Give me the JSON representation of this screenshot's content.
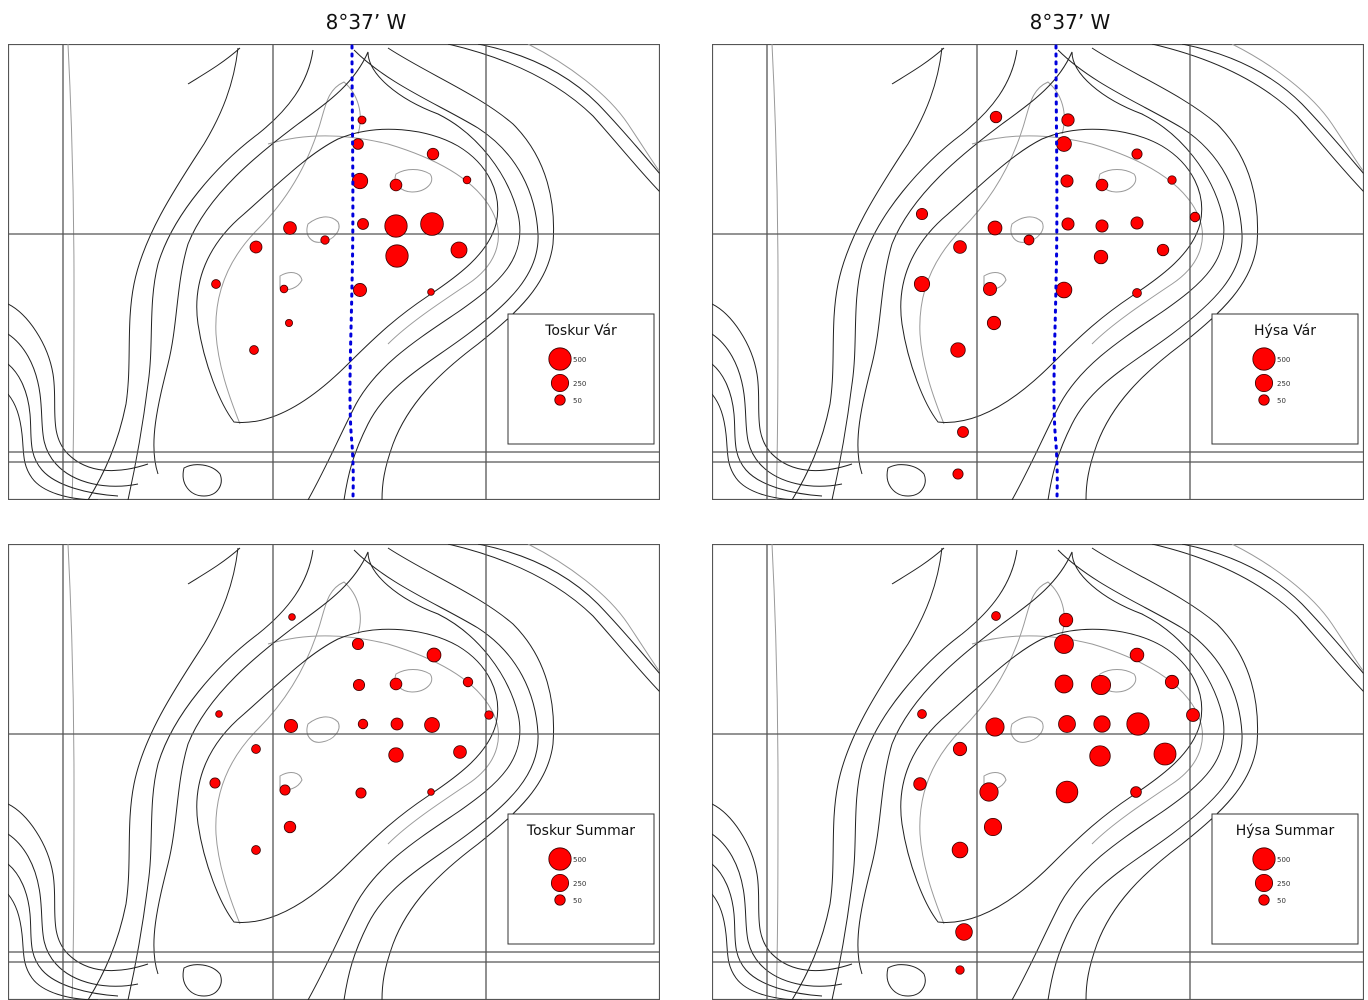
{
  "longitude_label": "8°37’ W",
  "panels": [
    {
      "id": "tl",
      "legend_title": "Toskur Vár",
      "show_meridian": true,
      "stations": [
        {
          "x": 354,
          "y": 76,
          "v": 15
        },
        {
          "x": 350,
          "y": 100,
          "v": 55
        },
        {
          "x": 425,
          "y": 110,
          "v": 70
        },
        {
          "x": 459,
          "y": 136,
          "v": 12
        },
        {
          "x": 352,
          "y": 137,
          "v": 180
        },
        {
          "x": 388,
          "y": 141,
          "v": 75
        },
        {
          "x": 388,
          "y": 182,
          "v": 500
        },
        {
          "x": 424,
          "y": 180,
          "v": 520
        },
        {
          "x": 355,
          "y": 180,
          "v": 60
        },
        {
          "x": 282,
          "y": 184,
          "v": 100
        },
        {
          "x": 317,
          "y": 196,
          "v": 20
        },
        {
          "x": 248,
          "y": 203,
          "v": 80
        },
        {
          "x": 451,
          "y": 206,
          "v": 200
        },
        {
          "x": 389,
          "y": 212,
          "v": 500
        },
        {
          "x": 208,
          "y": 240,
          "v": 25
        },
        {
          "x": 276,
          "y": 245,
          "v": 12
        },
        {
          "x": 352,
          "y": 246,
          "v": 110
        },
        {
          "x": 423,
          "y": 248,
          "v": 5
        },
        {
          "x": 281,
          "y": 279,
          "v": 8
        },
        {
          "x": 246,
          "y": 306,
          "v": 25
        }
      ]
    },
    {
      "id": "tr",
      "legend_title": "Hýsa Vár",
      "show_meridian": true,
      "stations": [
        {
          "x": 284,
          "y": 73,
          "v": 70
        },
        {
          "x": 356,
          "y": 76,
          "v": 90
        },
        {
          "x": 352,
          "y": 100,
          "v": 160
        },
        {
          "x": 425,
          "y": 110,
          "v": 45
        },
        {
          "x": 460,
          "y": 136,
          "v": 20
        },
        {
          "x": 355,
          "y": 137,
          "v": 85
        },
        {
          "x": 390,
          "y": 141,
          "v": 75
        },
        {
          "x": 210,
          "y": 170,
          "v": 65
        },
        {
          "x": 283,
          "y": 184,
          "v": 130
        },
        {
          "x": 317,
          "y": 196,
          "v": 40
        },
        {
          "x": 356,
          "y": 180,
          "v": 85
        },
        {
          "x": 390,
          "y": 182,
          "v": 85
        },
        {
          "x": 425,
          "y": 179,
          "v": 85
        },
        {
          "x": 483,
          "y": 173,
          "v": 35
        },
        {
          "x": 248,
          "y": 203,
          "v": 100
        },
        {
          "x": 451,
          "y": 206,
          "v": 70
        },
        {
          "x": 389,
          "y": 213,
          "v": 120
        },
        {
          "x": 210,
          "y": 240,
          "v": 175
        },
        {
          "x": 278,
          "y": 245,
          "v": 110
        },
        {
          "x": 352,
          "y": 246,
          "v": 190
        },
        {
          "x": 425,
          "y": 249,
          "v": 25
        },
        {
          "x": 282,
          "y": 279,
          "v": 115
        },
        {
          "x": 246,
          "y": 306,
          "v": 150
        },
        {
          "x": 251,
          "y": 388,
          "v": 60
        },
        {
          "x": 246,
          "y": 430,
          "v": 45
        }
      ]
    },
    {
      "id": "bl",
      "legend_title": "Toskur Summar",
      "show_meridian": false,
      "stations": [
        {
          "x": 284,
          "y": 73,
          "v": 5
        },
        {
          "x": 350,
          "y": 100,
          "v": 65
        },
        {
          "x": 426,
          "y": 111,
          "v": 130
        },
        {
          "x": 460,
          "y": 138,
          "v": 35
        },
        {
          "x": 351,
          "y": 141,
          "v": 65
        },
        {
          "x": 388,
          "y": 140,
          "v": 75
        },
        {
          "x": 211,
          "y": 170,
          "v": 5
        },
        {
          "x": 283,
          "y": 182,
          "v": 110
        },
        {
          "x": 355,
          "y": 180,
          "v": 35
        },
        {
          "x": 389,
          "y": 180,
          "v": 80
        },
        {
          "x": 424,
          "y": 181,
          "v": 160
        },
        {
          "x": 481,
          "y": 171,
          "v": 20
        },
        {
          "x": 248,
          "y": 205,
          "v": 25
        },
        {
          "x": 452,
          "y": 208,
          "v": 100
        },
        {
          "x": 388,
          "y": 211,
          "v": 150
        },
        {
          "x": 207,
          "y": 239,
          "v": 45
        },
        {
          "x": 277,
          "y": 246,
          "v": 45
        },
        {
          "x": 353,
          "y": 249,
          "v": 45
        },
        {
          "x": 423,
          "y": 248,
          "v": 5
        },
        {
          "x": 282,
          "y": 283,
          "v": 70
        },
        {
          "x": 248,
          "y": 306,
          "v": 25
        }
      ]
    },
    {
      "id": "br",
      "legend_title": "Hýsa Summar",
      "show_meridian": false,
      "stations": [
        {
          "x": 284,
          "y": 72,
          "v": 25
        },
        {
          "x": 354,
          "y": 76,
          "v": 120
        },
        {
          "x": 352,
          "y": 100,
          "v": 320
        },
        {
          "x": 425,
          "y": 111,
          "v": 125
        },
        {
          "x": 460,
          "y": 138,
          "v": 115
        },
        {
          "x": 352,
          "y": 140,
          "v": 275
        },
        {
          "x": 389,
          "y": 141,
          "v": 335
        },
        {
          "x": 210,
          "y": 170,
          "v": 25
        },
        {
          "x": 283,
          "y": 183,
          "v": 290
        },
        {
          "x": 355,
          "y": 180,
          "v": 235
        },
        {
          "x": 390,
          "y": 180,
          "v": 215
        },
        {
          "x": 426,
          "y": 180,
          "v": 500
        },
        {
          "x": 481,
          "y": 171,
          "v": 105
        },
        {
          "x": 248,
          "y": 205,
          "v": 115
        },
        {
          "x": 453,
          "y": 210,
          "v": 480
        },
        {
          "x": 388,
          "y": 212,
          "v": 400
        },
        {
          "x": 208,
          "y": 240,
          "v": 95
        },
        {
          "x": 277,
          "y": 248,
          "v": 295
        },
        {
          "x": 355,
          "y": 248,
          "v": 460
        },
        {
          "x": 424,
          "y": 248,
          "v": 55
        },
        {
          "x": 281,
          "y": 283,
          "v": 250
        },
        {
          "x": 248,
          "y": 306,
          "v": 190
        },
        {
          "x": 252,
          "y": 388,
          "v": 225
        },
        {
          "x": 248,
          "y": 426,
          "v": 20
        }
      ]
    }
  ],
  "legend_scale": [
    {
      "v": 500,
      "label": "500"
    },
    {
      "v": 250,
      "label": "250"
    },
    {
      "v": 50,
      "label": "50"
    }
  ],
  "colors": {
    "circle_fill": "#ff0000",
    "circle_stroke": "#3a0000",
    "meridian": "#0000dd",
    "grid": "#555555",
    "contour_dark": "#222222",
    "contour_light": "#9a9a9a"
  }
}
